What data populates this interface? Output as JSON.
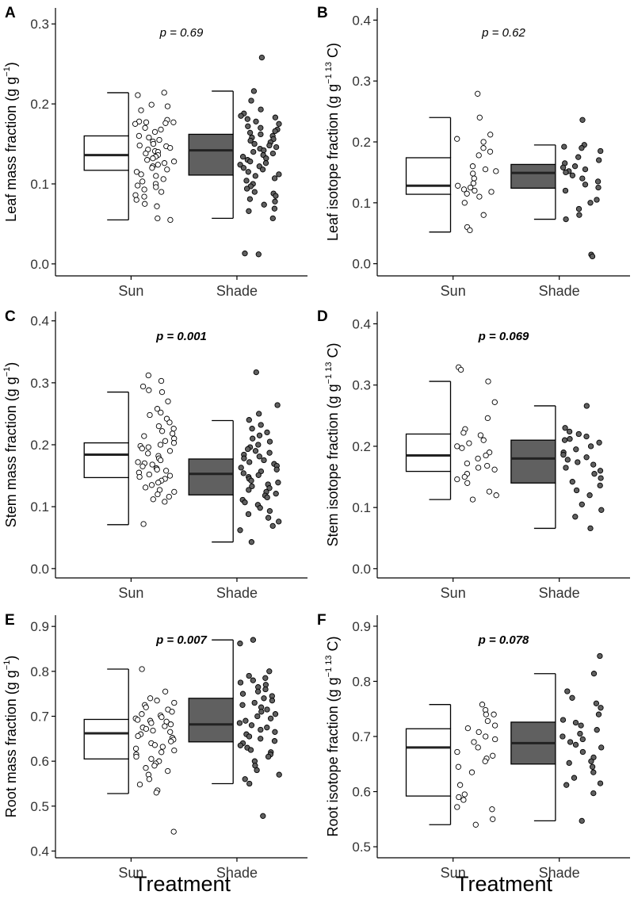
{
  "figure": {
    "x_title": "Treatment",
    "colors": {
      "sun_fill": "#ffffff",
      "shade_fill": "#606060",
      "stroke": "#000000"
    }
  },
  "chart_data": [
    {
      "type": "box+strip",
      "panel": "A",
      "title": "",
      "ylabel_main": "Leaf mass fraction (g g",
      "ylabel_sup": "−1",
      "ylabel_tail": ")",
      "xlabel": "Treatment",
      "categories": [
        "Sun",
        "Shade"
      ],
      "ylim": [
        -0.015,
        0.32
      ],
      "yticks": [
        0.0,
        0.1,
        0.2,
        0.3
      ],
      "ytick_labels": [
        "0.0",
        "0.1",
        "0.2",
        "0.3"
      ],
      "p_label": "p = 0.69",
      "p_significant": false,
      "boxes": [
        {
          "name": "Sun",
          "q1": 0.117,
          "median": 0.136,
          "q3": 0.16,
          "whisker_low": 0.055,
          "whisker_high": 0.214
        },
        {
          "name": "Shade",
          "q1": 0.111,
          "median": 0.142,
          "q3": 0.162,
          "whisker_low": 0.057,
          "whisker_high": 0.216
        }
      ],
      "points": [
        [
          0.214,
          0.211,
          0.199,
          0.197,
          0.192,
          0.18,
          0.178,
          0.177,
          0.177,
          0.176,
          0.175,
          0.17,
          0.168,
          0.165,
          0.16,
          0.158,
          0.155,
          0.153,
          0.15,
          0.148,
          0.147,
          0.145,
          0.143,
          0.141,
          0.14,
          0.138,
          0.136,
          0.134,
          0.132,
          0.13,
          0.128,
          0.126,
          0.124,
          0.122,
          0.12,
          0.118,
          0.115,
          0.112,
          0.11,
          0.106,
          0.103,
          0.1,
          0.098,
          0.096,
          0.093,
          0.09,
          0.086,
          0.084,
          0.08,
          0.075,
          0.072,
          0.057,
          0.055
        ],
        [
          0.258,
          0.216,
          0.204,
          0.193,
          0.188,
          0.185,
          0.183,
          0.181,
          0.178,
          0.175,
          0.172,
          0.17,
          0.168,
          0.166,
          0.164,
          0.162,
          0.16,
          0.158,
          0.156,
          0.154,
          0.152,
          0.15,
          0.148,
          0.146,
          0.144,
          0.142,
          0.14,
          0.138,
          0.136,
          0.134,
          0.132,
          0.13,
          0.128,
          0.126,
          0.124,
          0.122,
          0.12,
          0.118,
          0.115,
          0.112,
          0.11,
          0.107,
          0.104,
          0.1,
          0.097,
          0.094,
          0.09,
          0.088,
          0.085,
          0.081,
          0.078,
          0.074,
          0.069,
          0.066,
          0.057,
          0.013,
          0.012
        ]
      ]
    },
    {
      "type": "box+strip",
      "panel": "B",
      "title": "",
      "ylabel_main": "Leaf isotope fraction (g g",
      "ylabel_sup": "−1 13",
      "ylabel_tail": " C)",
      "xlabel": "Treatment",
      "categories": [
        "Sun",
        "Shade"
      ],
      "ylim": [
        -0.02,
        0.42
      ],
      "yticks": [
        0.0,
        0.1,
        0.2,
        0.3,
        0.4
      ],
      "ytick_labels": [
        "0.0",
        "0.1",
        "0.2",
        "0.3",
        "0.4"
      ],
      "p_label": "p = 0.62",
      "p_significant": false,
      "boxes": [
        {
          "name": "Sun",
          "q1": 0.114,
          "median": 0.128,
          "q3": 0.174,
          "whisker_low": 0.052,
          "whisker_high": 0.24
        },
        {
          "name": "Shade",
          "q1": 0.124,
          "median": 0.149,
          "q3": 0.163,
          "whisker_low": 0.073,
          "whisker_high": 0.195
        }
      ],
      "points": [
        [
          0.279,
          0.24,
          0.212,
          0.205,
          0.2,
          0.19,
          0.184,
          0.178,
          0.16,
          0.155,
          0.152,
          0.148,
          0.14,
          0.132,
          0.128,
          0.125,
          0.122,
          0.12,
          0.118,
          0.115,
          0.11,
          0.1,
          0.08,
          0.06,
          0.055
        ],
        [
          0.236,
          0.195,
          0.192,
          0.19,
          0.185,
          0.175,
          0.17,
          0.165,
          0.16,
          0.158,
          0.155,
          0.152,
          0.15,
          0.145,
          0.14,
          0.135,
          0.13,
          0.125,
          0.12,
          0.105,
          0.1,
          0.09,
          0.08,
          0.073,
          0.015,
          0.012
        ]
      ]
    },
    {
      "type": "box+strip",
      "panel": "C",
      "title": "",
      "ylabel_main": "Stem mass fraction (g g",
      "ylabel_sup": "−1",
      "ylabel_tail": ")",
      "xlabel": "Treatment",
      "categories": [
        "Sun",
        "Shade"
      ],
      "ylim": [
        -0.015,
        0.415
      ],
      "yticks": [
        0.0,
        0.1,
        0.2,
        0.3,
        0.4
      ],
      "ytick_labels": [
        "0.0",
        "0.1",
        "0.2",
        "0.3",
        "0.4"
      ],
      "p_label": "p = 0.001",
      "p_significant": true,
      "boxes": [
        {
          "name": "Sun",
          "q1": 0.147,
          "median": 0.184,
          "q3": 0.203,
          "whisker_low": 0.071,
          "whisker_high": 0.285
        },
        {
          "name": "Shade",
          "q1": 0.119,
          "median": 0.153,
          "q3": 0.177,
          "whisker_low": 0.043,
          "whisker_high": 0.239
        }
      ],
      "points": [
        [
          0.312,
          0.303,
          0.294,
          0.288,
          0.285,
          0.27,
          0.258,
          0.252,
          0.248,
          0.242,
          0.236,
          0.23,
          0.226,
          0.222,
          0.218,
          0.214,
          0.21,
          0.206,
          0.203,
          0.2,
          0.198,
          0.196,
          0.194,
          0.19,
          0.186,
          0.182,
          0.178,
          0.175,
          0.172,
          0.17,
          0.168,
          0.165,
          0.162,
          0.16,
          0.158,
          0.155,
          0.152,
          0.15,
          0.148,
          0.145,
          0.142,
          0.139,
          0.135,
          0.131,
          0.127,
          0.124,
          0.12,
          0.116,
          0.112,
          0.108,
          0.072
        ],
        [
          0.317,
          0.264,
          0.25,
          0.24,
          0.232,
          0.226,
          0.22,
          0.215,
          0.21,
          0.205,
          0.2,
          0.196,
          0.193,
          0.19,
          0.187,
          0.184,
          0.181,
          0.178,
          0.175,
          0.172,
          0.169,
          0.166,
          0.163,
          0.16,
          0.157,
          0.154,
          0.151,
          0.148,
          0.145,
          0.142,
          0.139,
          0.136,
          0.133,
          0.13,
          0.127,
          0.124,
          0.121,
          0.118,
          0.115,
          0.111,
          0.107,
          0.103,
          0.098,
          0.093,
          0.088,
          0.082,
          0.076,
          0.069,
          0.062,
          0.043
        ]
      ]
    },
    {
      "type": "box+strip",
      "panel": "D",
      "title": "",
      "ylabel_main": "Stem isotope fraction (g g",
      "ylabel_sup": "−1 13",
      "ylabel_tail": " C)",
      "xlabel": "Treatment",
      "categories": [
        "Sun",
        "Shade"
      ],
      "ylim": [
        -0.015,
        0.42
      ],
      "yticks": [
        0.0,
        0.1,
        0.2,
        0.3,
        0.4
      ],
      "ytick_labels": [
        "0.0",
        "0.1",
        "0.2",
        "0.3",
        "0.4"
      ],
      "p_label": "p = 0.069",
      "p_significant": true,
      "boxes": [
        {
          "name": "Sun",
          "q1": 0.159,
          "median": 0.185,
          "q3": 0.22,
          "whisker_low": 0.113,
          "whisker_high": 0.306
        },
        {
          "name": "Shade",
          "q1": 0.14,
          "median": 0.18,
          "q3": 0.21,
          "whisker_low": 0.066,
          "whisker_high": 0.266
        }
      ],
      "points": [
        [
          0.329,
          0.325,
          0.306,
          0.272,
          0.246,
          0.228,
          0.222,
          0.218,
          0.21,
          0.205,
          0.2,
          0.197,
          0.19,
          0.185,
          0.18,
          0.172,
          0.168,
          0.165,
          0.162,
          0.155,
          0.15,
          0.146,
          0.14,
          0.126,
          0.12,
          0.113
        ],
        [
          0.266,
          0.23,
          0.224,
          0.22,
          0.216,
          0.212,
          0.21,
          0.206,
          0.2,
          0.195,
          0.19,
          0.186,
          0.182,
          0.178,
          0.174,
          0.17,
          0.165,
          0.16,
          0.155,
          0.148,
          0.142,
          0.136,
          0.128,
          0.12,
          0.105,
          0.096,
          0.085,
          0.066
        ]
      ]
    },
    {
      "type": "box+strip",
      "panel": "E",
      "title": "",
      "ylabel_main": "Root mass fraction (g g",
      "ylabel_sup": "−1",
      "ylabel_tail": ")",
      "xlabel": "Treatment",
      "categories": [
        "Sun",
        "Shade"
      ],
      "ylim": [
        0.385,
        0.925
      ],
      "yticks": [
        0.4,
        0.5,
        0.6,
        0.7,
        0.8,
        0.9
      ],
      "ytick_labels": [
        "0.4",
        "0.5",
        "0.6",
        "0.7",
        "0.8",
        "0.9"
      ],
      "p_label": "p = 0.007",
      "p_significant": true,
      "boxes": [
        {
          "name": "Sun",
          "q1": 0.605,
          "median": 0.662,
          "q3": 0.693,
          "whisker_low": 0.528,
          "whisker_high": 0.805
        },
        {
          "name": "Shade",
          "q1": 0.643,
          "median": 0.682,
          "q3": 0.74,
          "whisker_low": 0.55,
          "whisker_high": 0.87
        }
      ],
      "points": [
        [
          0.805,
          0.755,
          0.74,
          0.735,
          0.73,
          0.725,
          0.72,
          0.715,
          0.71,
          0.705,
          0.702,
          0.698,
          0.695,
          0.692,
          0.69,
          0.688,
          0.685,
          0.682,
          0.678,
          0.675,
          0.672,
          0.668,
          0.665,
          0.66,
          0.656,
          0.652,
          0.648,
          0.644,
          0.64,
          0.636,
          0.632,
          0.628,
          0.624,
          0.62,
          0.615,
          0.61,
          0.605,
          0.6,
          0.595,
          0.59,
          0.585,
          0.578,
          0.57,
          0.56,
          0.548,
          0.535,
          0.53,
          0.443
        ],
        [
          0.87,
          0.862,
          0.8,
          0.79,
          0.785,
          0.78,
          0.775,
          0.77,
          0.765,
          0.76,
          0.755,
          0.75,
          0.745,
          0.74,
          0.735,
          0.73,
          0.725,
          0.72,
          0.715,
          0.71,
          0.705,
          0.7,
          0.695,
          0.69,
          0.685,
          0.68,
          0.675,
          0.67,
          0.665,
          0.66,
          0.655,
          0.65,
          0.645,
          0.64,
          0.635,
          0.63,
          0.625,
          0.62,
          0.615,
          0.61,
          0.6,
          0.59,
          0.58,
          0.57,
          0.56,
          0.55,
          0.478
        ]
      ]
    },
    {
      "type": "box+strip",
      "panel": "F",
      "title": "",
      "ylabel_main": "Root isotope fraction (g g",
      "ylabel_sup": "−1 13",
      "ylabel_tail": " C)",
      "xlabel": "Treatment",
      "categories": [
        "Sun",
        "Shade"
      ],
      "ylim": [
        0.48,
        0.92
      ],
      "yticks": [
        0.5,
        0.6,
        0.7,
        0.8,
        0.9
      ],
      "ytick_labels": [
        "0.5",
        "0.6",
        "0.7",
        "0.8",
        "0.9"
      ],
      "p_label": "p = 0.078",
      "p_significant": true,
      "boxes": [
        {
          "name": "Sun",
          "q1": 0.592,
          "median": 0.68,
          "q3": 0.714,
          "whisker_low": 0.54,
          "whisker_high": 0.758
        },
        {
          "name": "Shade",
          "q1": 0.65,
          "median": 0.688,
          "q3": 0.726,
          "whisker_low": 0.547,
          "whisker_high": 0.814
        }
      ],
      "points": [
        [
          0.758,
          0.748,
          0.74,
          0.74,
          0.728,
          0.72,
          0.715,
          0.708,
          0.7,
          0.695,
          0.69,
          0.68,
          0.672,
          0.665,
          0.66,
          0.655,
          0.645,
          0.635,
          0.612,
          0.595,
          0.59,
          0.585,
          0.572,
          0.568,
          0.55,
          0.54
        ],
        [
          0.846,
          0.814,
          0.782,
          0.77,
          0.76,
          0.752,
          0.74,
          0.73,
          0.725,
          0.72,
          0.712,
          0.705,
          0.7,
          0.695,
          0.69,
          0.685,
          0.68,
          0.672,
          0.662,
          0.655,
          0.652,
          0.645,
          0.635,
          0.625,
          0.615,
          0.612,
          0.597,
          0.547
        ]
      ]
    }
  ]
}
